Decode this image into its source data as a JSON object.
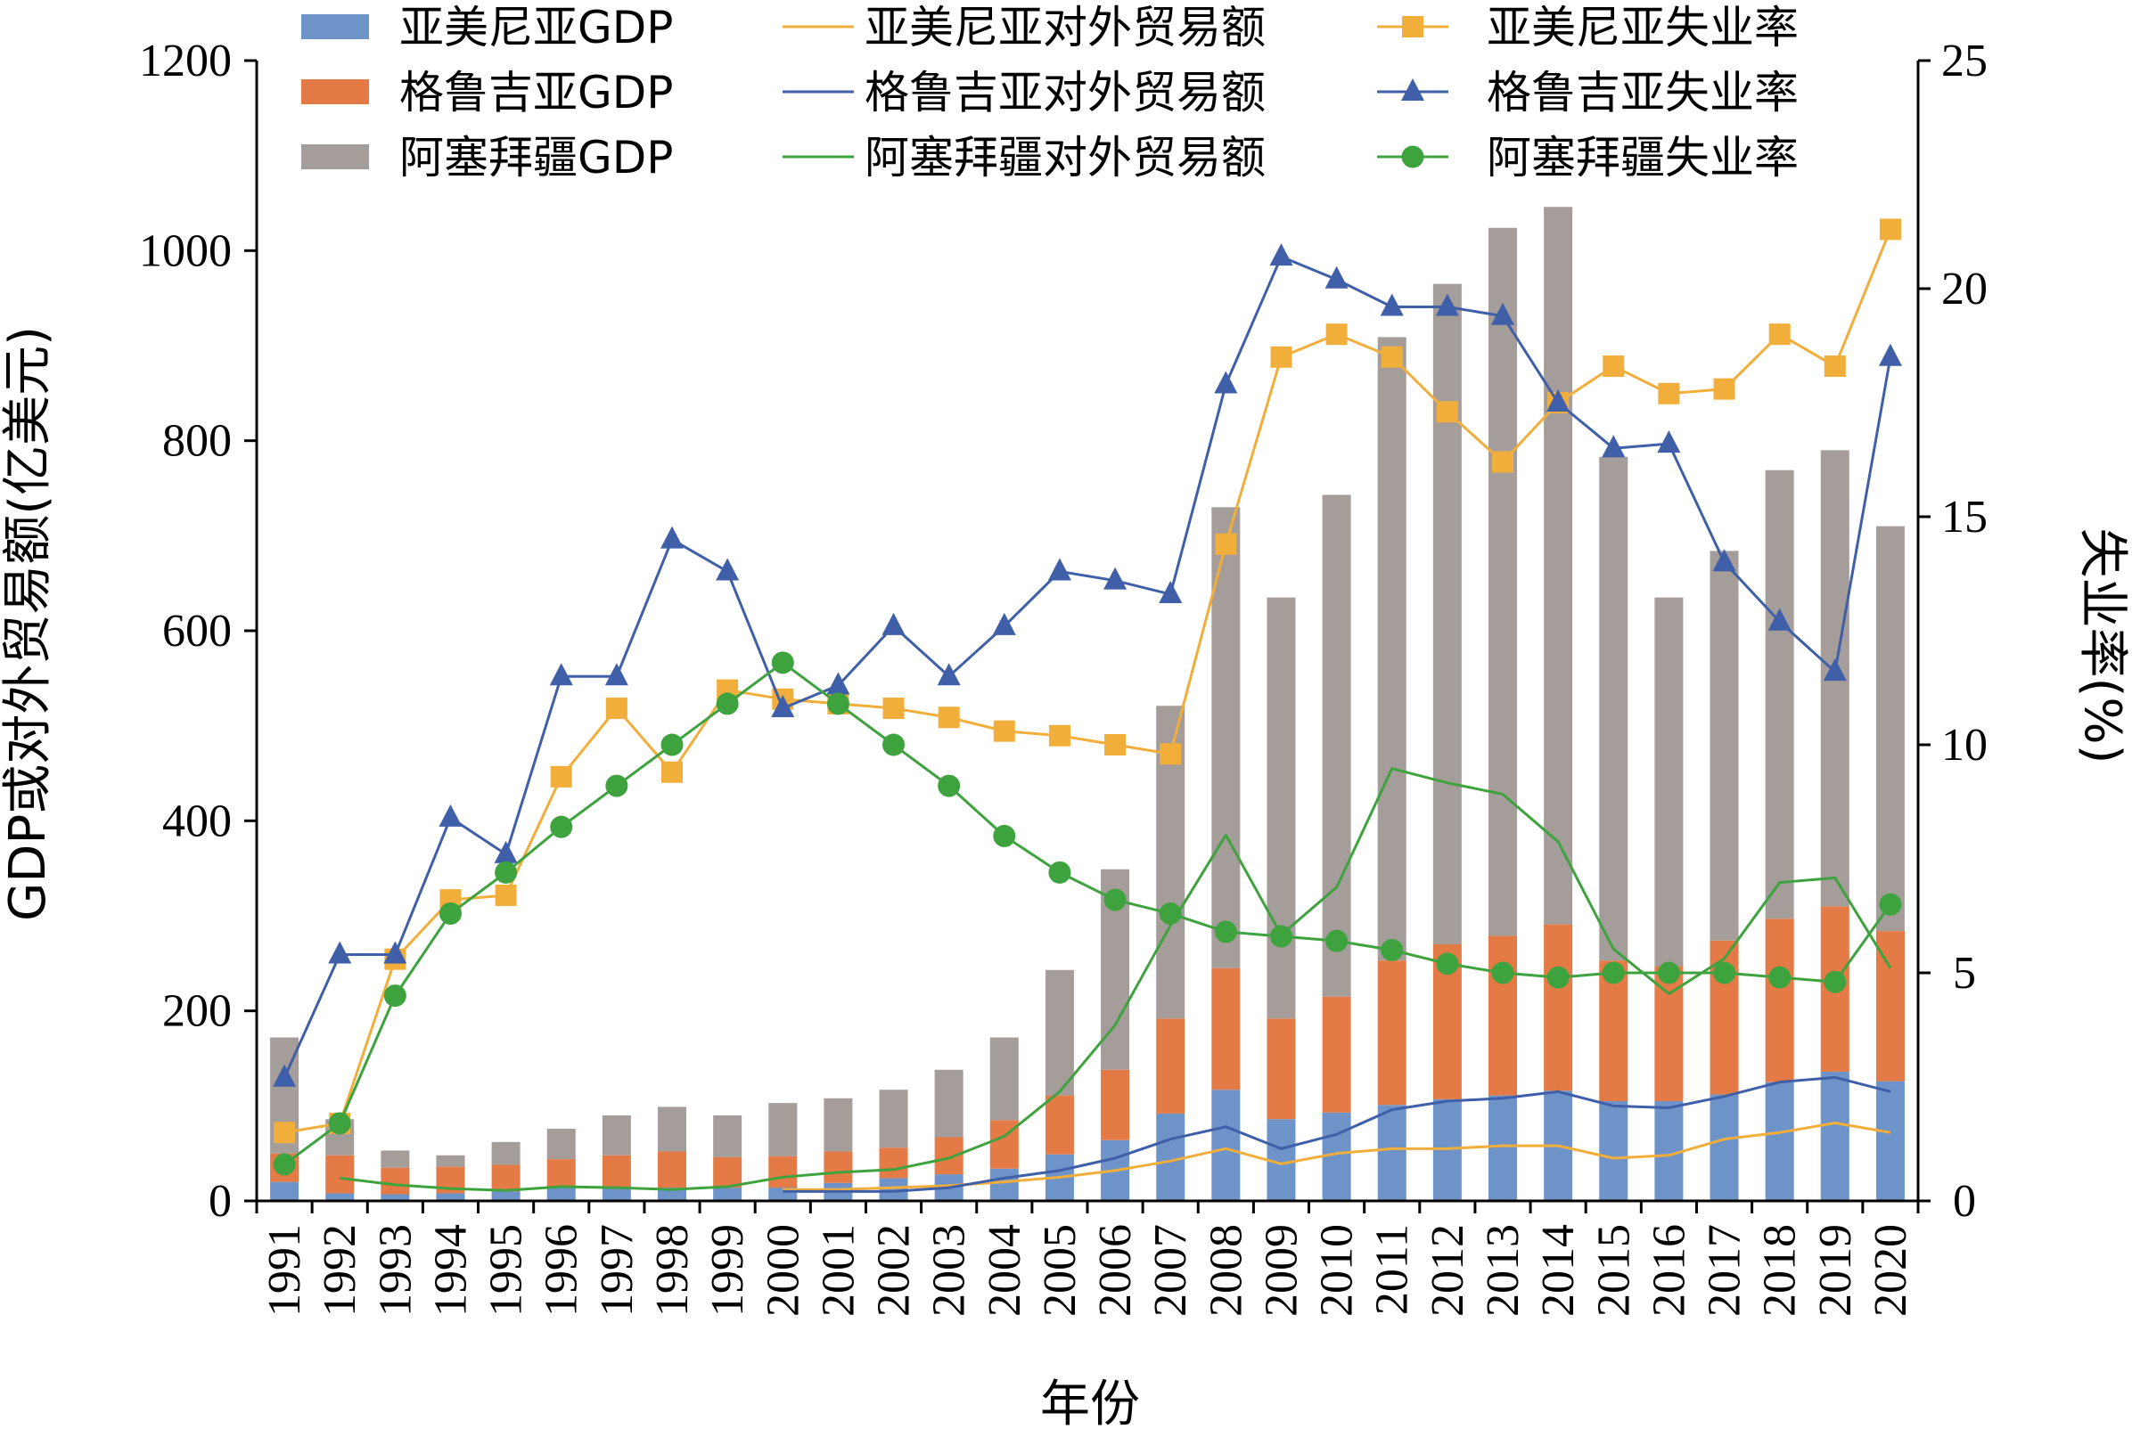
{
  "chart_data": {
    "type": "bar",
    "stacked": true,
    "categories": [
      "1991",
      "1992",
      "1993",
      "1994",
      "1995",
      "1996",
      "1997",
      "1998",
      "1999",
      "2000",
      "2001",
      "2002",
      "2003",
      "2004",
      "2005",
      "2006",
      "2007",
      "2008",
      "2009",
      "2010",
      "2011",
      "2012",
      "2013",
      "2014",
      "2015",
      "2016",
      "2017",
      "2018",
      "2019",
      "2020"
    ],
    "xlabel": "年份",
    "ylabel": "GDP或对外贸易额(亿美元)",
    "y2label": "失业率(%)",
    "ylim": [
      0,
      1200
    ],
    "yticks": [
      0,
      200,
      400,
      600,
      800,
      1000,
      1200
    ],
    "y2lim": [
      0,
      25
    ],
    "y2ticks": [
      0,
      5,
      10,
      15,
      20,
      25
    ],
    "grid": false,
    "legend_position": "top",
    "colors": {
      "armenia_gdp": "#6E93C8",
      "georgia_gdp": "#E47A45",
      "azerbaijan_gdp": "#A59D9A",
      "armenia_line": "#F2AE3B",
      "georgia_line": "#3F5FA8",
      "azerbaijan_line": "#3EA33E"
    },
    "bar_series": [
      {
        "name": "亚美尼亚GDP",
        "key": "armenia_gdp",
        "values": [
          20,
          8,
          7,
          8,
          10,
          14,
          14,
          14,
          14,
          14,
          19,
          24,
          28,
          34,
          49,
          64,
          92,
          117,
          86,
          93,
          101,
          107,
          111,
          116,
          105,
          105,
          112,
          125,
          136,
          126
        ]
      },
      {
        "name": "格鲁吉亚GDP",
        "key": "georgia_gdp",
        "values": [
          30,
          40,
          28,
          28,
          28,
          30,
          34,
          38,
          32,
          33,
          33,
          32,
          39,
          51,
          62,
          74,
          100,
          128,
          106,
          122,
          152,
          163,
          168,
          175,
          148,
          142,
          162,
          172,
          174,
          158
        ]
      },
      {
        "name": "阿塞拜疆GDP",
        "key": "azerbaijan_gdp",
        "values": [
          122,
          38,
          18,
          12,
          24,
          32,
          42,
          47,
          44,
          56,
          56,
          61,
          71,
          87,
          132,
          211,
          329,
          485,
          443,
          528,
          656,
          695,
          745,
          755,
          530,
          388,
          410,
          472,
          480,
          426
        ]
      }
    ],
    "trade_series": [
      {
        "name": "亚美尼亚对外贸易额",
        "key": "armenia_line",
        "axis": "left",
        "values": [
          null,
          null,
          null,
          null,
          null,
          null,
          null,
          null,
          null,
          12,
          12,
          14,
          16,
          20,
          25,
          32,
          42,
          55,
          39,
          50,
          55,
          55,
          58,
          58,
          45,
          48,
          65,
          72,
          82,
          72
        ]
      },
      {
        "name": "格鲁吉亚对外贸易额",
        "key": "georgia_line",
        "axis": "left",
        "values": [
          null,
          null,
          null,
          null,
          null,
          null,
          null,
          null,
          null,
          10,
          10,
          10,
          14,
          24,
          32,
          45,
          65,
          78,
          55,
          70,
          96,
          105,
          108,
          115,
          100,
          98,
          110,
          125,
          130,
          115
        ]
      },
      {
        "name": "阿塞拜疆对外贸易额",
        "key": "azerbaijan_line",
        "axis": "left",
        "values": [
          null,
          24,
          17,
          13,
          11,
          15,
          14,
          12,
          15,
          25,
          30,
          33,
          45,
          68,
          115,
          185,
          290,
          385,
          280,
          330,
          455,
          440,
          428,
          378,
          265,
          218,
          255,
          335,
          340,
          245
        ]
      }
    ],
    "unemployment_series": [
      {
        "name": "亚美尼亚失业率",
        "key": "armenia_line",
        "axis": "right",
        "marker": "square",
        "values": [
          1.5,
          1.7,
          5.3,
          6.6,
          6.7,
          9.3,
          10.8,
          9.4,
          11.2,
          11.0,
          10.9,
          10.8,
          10.6,
          10.3,
          10.2,
          10.0,
          9.8,
          14.4,
          18.5,
          19.0,
          18.5,
          17.3,
          16.2,
          17.5,
          18.3,
          17.7,
          17.8,
          19.0,
          18.3,
          21.3
        ]
      },
      {
        "name": "格鲁吉亚失业率",
        "key": "georgia_line",
        "axis": "right",
        "marker": "triangle",
        "values": [
          2.7,
          5.4,
          5.4,
          8.4,
          7.6,
          11.5,
          11.5,
          14.5,
          13.8,
          10.8,
          11.3,
          12.6,
          11.5,
          12.6,
          13.8,
          13.6,
          13.3,
          17.9,
          20.7,
          20.2,
          19.6,
          19.6,
          19.4,
          17.5,
          16.5,
          16.6,
          14.0,
          12.7,
          11.6,
          18.5
        ]
      },
      {
        "name": "阿塞拜疆失业率",
        "key": "azerbaijan_line",
        "axis": "right",
        "marker": "circle",
        "values": [
          0.8,
          1.7,
          4.5,
          6.3,
          7.2,
          8.2,
          9.1,
          10.0,
          10.9,
          11.8,
          10.9,
          10.0,
          9.1,
          8.0,
          7.2,
          6.6,
          6.3,
          5.9,
          5.8,
          5.7,
          5.5,
          5.2,
          5.0,
          4.9,
          5.0,
          5.0,
          5.0,
          4.9,
          4.8,
          6.5
        ]
      }
    ]
  }
}
